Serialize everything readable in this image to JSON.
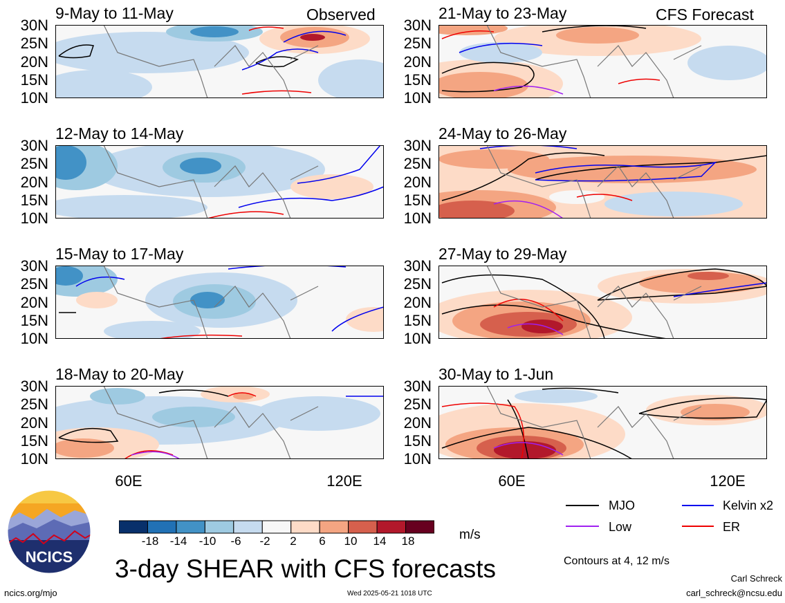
{
  "panels": [
    {
      "title": "9-May to 11-May",
      "tag": "Observed"
    },
    {
      "title": "12-May to 14-May",
      "tag": ""
    },
    {
      "title": "15-May to 17-May",
      "tag": ""
    },
    {
      "title": "18-May to 20-May",
      "tag": ""
    },
    {
      "title": "21-May to 23-May",
      "tag": "CFS Forecast"
    },
    {
      "title": "24-May to 26-May",
      "tag": ""
    },
    {
      "title": "27-May to 29-May",
      "tag": ""
    },
    {
      "title": "30-May to 1-Jun",
      "tag": ""
    }
  ],
  "lat_labels": [
    "30N",
    "25N",
    "20N",
    "15N",
    "10N"
  ],
  "lon_labels": [
    "60E",
    "120E"
  ],
  "colorbar": {
    "colors": [
      "#08306b",
      "#2171b5",
      "#4292c6",
      "#9ecae1",
      "#c6dbef",
      "#f7f7f7",
      "#fddbc7",
      "#f4a582",
      "#d6604d",
      "#b2182b",
      "#67001f"
    ],
    "ticks": [
      "-18",
      "-14",
      "-10",
      "-6",
      "-2",
      "2",
      "6",
      "10",
      "14",
      "18"
    ],
    "unit": "m/s"
  },
  "legend": {
    "items": [
      {
        "label": "MJO",
        "color": "#000000"
      },
      {
        "label": "Kelvin x2",
        "color": "#0000ee"
      },
      {
        "label": "Low",
        "color": "#a020f0"
      },
      {
        "label": "ER",
        "color": "#ee0000"
      }
    ],
    "note": "Contours at 4, 12 m/s"
  },
  "logo_text": "NCICS",
  "main_title": "3-day SHEAR with CFS forecasts",
  "footer": {
    "url": "ncics.org/mjo",
    "timestamp": "Wed 2025-05-21 1018 UTC",
    "author": "Carl Schreck",
    "email": "carl_schreck@ncsu.edu"
  }
}
